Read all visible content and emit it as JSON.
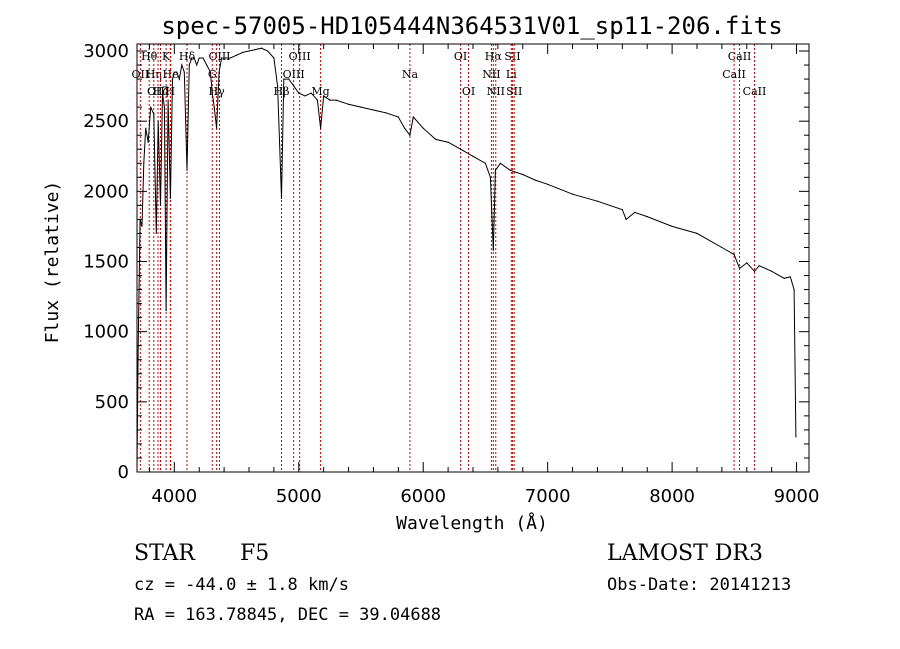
{
  "chart_data": {
    "type": "line",
    "title": "spec-57005-HD105444N364531V01_sp11-206.fits",
    "xlabel": "Wavelength (Å)",
    "ylabel": "Flux (relative)",
    "xlim": [
      3700,
      9100
    ],
    "ylim": [
      0,
      3050
    ],
    "xticks": [
      4000,
      5000,
      6000,
      7000,
      8000,
      9000
    ],
    "yticks": [
      0,
      500,
      1000,
      1500,
      2000,
      2500,
      3000
    ],
    "grid": false,
    "series": [
      {
        "name": "spectrum",
        "x": [
          3700,
          3710,
          3725,
          3740,
          3755,
          3770,
          3790,
          3810,
          3835,
          3855,
          3870,
          3889,
          3905,
          3920,
          3934,
          3950,
          3968,
          3985,
          4000,
          4020,
          4040,
          4060,
          4080,
          4102,
          4120,
          4140,
          4160,
          4180,
          4200,
          4230,
          4260,
          4290,
          4305,
          4320,
          4340,
          4360,
          4380,
          4400,
          4450,
          4500,
          4550,
          4600,
          4650,
          4700,
          4750,
          4800,
          4830,
          4861,
          4880,
          4920,
          4960,
          5000,
          5050,
          5100,
          5150,
          5175,
          5200,
          5250,
          5300,
          5400,
          5500,
          5600,
          5700,
          5800,
          5850,
          5893,
          5920,
          6000,
          6100,
          6200,
          6300,
          6400,
          6500,
          6540,
          6563,
          6580,
          6620,
          6700,
          6800,
          6900,
          7000,
          7200,
          7400,
          7600,
          7630,
          7700,
          7800,
          8000,
          8200,
          8400,
          8498,
          8542,
          8600,
          8662,
          8700,
          8800,
          8900,
          8950,
          8980,
          8995
        ],
        "values": [
          20,
          900,
          1800,
          1750,
          2200,
          2450,
          2350,
          2600,
          2550,
          1700,
          2500,
          1900,
          2700,
          2600,
          1150,
          2650,
          1950,
          2800,
          2850,
          2850,
          2800,
          2900,
          2850,
          2150,
          2900,
          2950,
          2950,
          2900,
          2950,
          2950,
          2900,
          2850,
          2700,
          2600,
          2450,
          2850,
          2950,
          2950,
          2950,
          2970,
          2990,
          3000,
          3010,
          3020,
          3000,
          2950,
          2750,
          1950,
          2800,
          2800,
          2750,
          2700,
          2680,
          2700,
          2650,
          2450,
          2680,
          2650,
          2650,
          2620,
          2600,
          2580,
          2560,
          2530,
          2450,
          2400,
          2530,
          2450,
          2370,
          2350,
          2300,
          2250,
          2200,
          2100,
          1580,
          2150,
          2200,
          2150,
          2120,
          2080,
          2050,
          1980,
          1930,
          1870,
          1800,
          1850,
          1820,
          1750,
          1700,
          1600,
          1550,
          1450,
          1490,
          1430,
          1470,
          1430,
          1380,
          1390,
          1300,
          250
        ]
      }
    ],
    "line_markers": [
      {
        "name": "Hθ",
        "wl": 3798,
        "row": 1
      },
      {
        "name": "OII",
        "wl": 3727,
        "row": 2
      },
      {
        "name": "Hη",
        "wl": 3835,
        "row": 2
      },
      {
        "name": "OIII",
        "wl": 3869,
        "row": 3
      },
      {
        "name": "Hζ",
        "wl": 3889,
        "row": 3
      },
      {
        "name": "K",
        "wl": 3934,
        "row": 1
      },
      {
        "name": "He",
        "wl": 3970,
        "row": 2
      },
      {
        "name": "H",
        "wl": 3968,
        "row": 3
      },
      {
        "name": "Hδ",
        "wl": 4102,
        "row": 1
      },
      {
        "name": "G",
        "wl": 4305,
        "row": 2
      },
      {
        "name": "OIII",
        "wl": 4363,
        "row": 1
      },
      {
        "name": "Hγ",
        "wl": 4340,
        "row": 3
      },
      {
        "name": "Hβ",
        "wl": 4861,
        "row": 3
      },
      {
        "name": "OIII",
        "wl": 5007,
        "row": 1
      },
      {
        "name": "OIII",
        "wl": 4959,
        "row": 2
      },
      {
        "name": "Mg",
        "wl": 5175,
        "row": 3
      },
      {
        "name": "Na",
        "wl": 5893,
        "row": 2
      },
      {
        "name": "OI",
        "wl": 6300,
        "row": 1
      },
      {
        "name": "OI",
        "wl": 6364,
        "row": 3
      },
      {
        "name": "Hα",
        "wl": 6563,
        "row": 1
      },
      {
        "name": "NII",
        "wl": 6548,
        "row": 2
      },
      {
        "name": "NII",
        "wl": 6583,
        "row": 3
      },
      {
        "name": "SII",
        "wl": 6717,
        "row": 1
      },
      {
        "name": "Li",
        "wl": 6708,
        "row": 2
      },
      {
        "name": "SII",
        "wl": 6731,
        "row": 3
      },
      {
        "name": "CaII",
        "wl": 8542,
        "row": 1
      },
      {
        "name": "CaII",
        "wl": 8498,
        "row": 2
      },
      {
        "name": "CaII",
        "wl": 8662,
        "row": 3
      }
    ]
  },
  "info": {
    "object_class": "STAR",
    "subclass": "F5",
    "survey": "LAMOST DR3",
    "redshift_line": "cz = -44.0 ± 1.8 km/s",
    "obs_date": "Obs-Date: 20141213",
    "coords": "RA = 163.78845, DEC =  39.04688"
  },
  "colors": {
    "spectrum": "#000000",
    "marker": "#cc0000",
    "axis": "#000000"
  }
}
